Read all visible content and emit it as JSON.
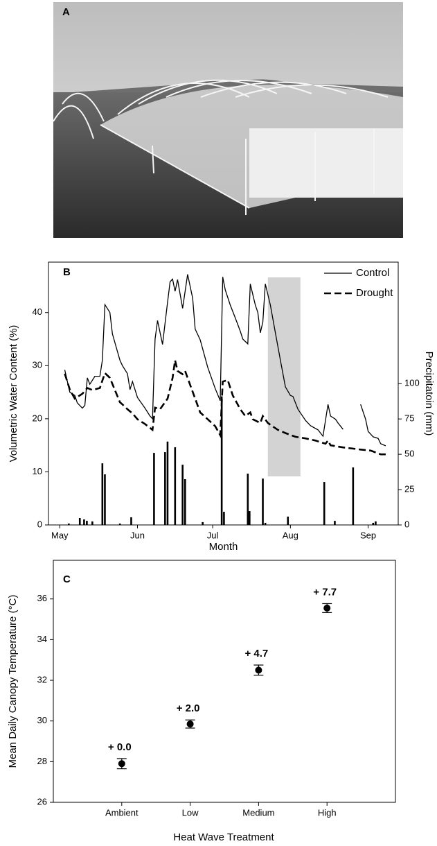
{
  "panel_a": {
    "label": "A"
  },
  "chart_data": [
    {
      "type": "line",
      "panel_label": "B",
      "x_label": "Month",
      "y_label": "Volumetric Water Content  (%)",
      "y2_label": "Precipitatoin (mm)",
      "xlim": [
        -4.5,
        135
      ],
      "xticks": [
        {
          "value": 0,
          "label": "May"
        },
        {
          "value": 31,
          "label": "Jun"
        },
        {
          "value": 61,
          "label": "Jul"
        },
        {
          "value": 92,
          "label": "Aug"
        },
        {
          "value": 123,
          "label": "Sep"
        }
      ],
      "ylim": [
        0,
        49.5
      ],
      "yticks": [
        0,
        10,
        20,
        30,
        40
      ],
      "y2lim": [
        0,
        186
      ],
      "y2ticks": [
        0,
        25,
        50,
        75,
        100
      ],
      "legend": "upper right",
      "grid": false,
      "shaded_range": [
        83,
        96
      ],
      "shade_color": "#d3d3d3",
      "series": [
        {
          "name": "Control",
          "type": "line",
          "color": "#000000",
          "dash": "solid",
          "x": [
            2,
            4,
            6,
            7,
            9,
            10,
            11,
            12,
            14,
            16,
            17,
            18,
            20,
            21,
            24,
            25,
            27,
            28,
            29,
            31,
            34,
            36,
            37,
            38,
            39,
            41,
            43,
            44,
            45,
            46,
            47,
            49,
            51,
            53,
            54,
            56,
            59,
            62,
            64,
            65,
            66,
            68,
            70,
            72,
            73,
            75,
            76,
            77,
            78,
            79,
            80,
            81,
            82,
            84,
            86,
            88,
            90,
            92,
            93,
            95,
            98,
            100,
            103,
            105,
            107,
            108,
            110,
            111,
            113,
            114,
            120,
            122,
            123,
            125,
            127,
            128,
            130
          ],
          "values": [
            29.2,
            25,
            24.4,
            23,
            22,
            22.5,
            27.7,
            26.5,
            28,
            28,
            31,
            41.5,
            40,
            36,
            31,
            30,
            28.5,
            25.5,
            27,
            24,
            22,
            20.5,
            20,
            35,
            38.5,
            34,
            42,
            45.8,
            46.3,
            44,
            46.2,
            40.8,
            47.2,
            42.7,
            36.9,
            34.9,
            29.7,
            25.7,
            23.4,
            46.7,
            44.3,
            41.4,
            39,
            36.5,
            35,
            34.1,
            45.4,
            43.4,
            41.4,
            40,
            36.2,
            38.2,
            45.4,
            41.4,
            36.2,
            31,
            26,
            24.4,
            24.2,
            21.8,
            19.7,
            18.7,
            17.9,
            16.7,
            22.7,
            20.5,
            19.9,
            19.2,
            18,
            null,
            22.7,
            19.9,
            17.6,
            16.6,
            16.3,
            15.3,
            14.9
          ]
        },
        {
          "name": "Drought",
          "type": "line",
          "color": "#000000",
          "dash": "dashed",
          "x": [
            2,
            4,
            6,
            9,
            11,
            13,
            16,
            18,
            20,
            22,
            24,
            25,
            27,
            29,
            31,
            34,
            37,
            38,
            40,
            43,
            45,
            46,
            47,
            49,
            50,
            52,
            54,
            56,
            59,
            62,
            64,
            65,
            67,
            69,
            72,
            74,
            76,
            77,
            80,
            81,
            83,
            87,
            90,
            94,
            98,
            102,
            106,
            107,
            108,
            113,
            120,
            124,
            128,
            130
          ],
          "values": [
            28.5,
            25.5,
            23.8,
            24.7,
            25.8,
            25.4,
            25.8,
            28.6,
            27.7,
            25.4,
            23.1,
            22.7,
            21.8,
            21,
            19.9,
            19,
            17.9,
            22.1,
            21.8,
            23.8,
            27.7,
            31,
            29,
            28.4,
            29,
            26.4,
            23.8,
            21.2,
            19.9,
            18.6,
            16.9,
            27,
            27.3,
            24.4,
            21.8,
            20.5,
            21.2,
            19.9,
            19.2,
            20.5,
            19.2,
            17.9,
            17.3,
            16.6,
            16.3,
            15.9,
            15.3,
            15.9,
            15,
            14.6,
            14.2,
            14,
            13.3,
            13.3
          ]
        },
        {
          "type": "bar",
          "axis": "y2",
          "color": "#000000",
          "x": [
            3.6,
            8,
            9.7,
            10.8,
            13,
            17,
            18,
            24,
            28.5,
            37.6,
            42,
            43,
            46,
            49,
            50,
            57,
            64.6,
            65.5,
            75,
            75.7,
            81,
            82,
            91,
            105.5,
            109.7,
            117,
            125,
            126
          ],
          "values": [
            1,
            4.9,
            3.9,
            2.9,
            2.5,
            43.6,
            35.8,
            1,
            5.4,
            51,
            51.5,
            59,
            55,
            42.6,
            32.4,
            2,
            91,
            9.3,
            36.3,
            9.8,
            32.8,
            1.5,
            5.9,
            30.4,
            2.9,
            40.7,
            1.5,
            2.5
          ]
        }
      ]
    },
    {
      "type": "scatter",
      "panel_label": "C",
      "x_label": "Heat Wave Treatment",
      "y_label": "Mean Daily Canopy Temperature (°C)",
      "categories": [
        "Ambient",
        "Low",
        "Medium",
        "High"
      ],
      "values": [
        27.9,
        29.85,
        32.5,
        35.55
      ],
      "errors": [
        0.25,
        0.2,
        0.25,
        0.22
      ],
      "annotations": [
        "+ 0.0",
        "+ 2.0",
        "+ 4.7",
        "+ 7.7"
      ],
      "ylim": [
        26,
        37.9
      ],
      "yticks": [
        26,
        28,
        30,
        32,
        34,
        36
      ],
      "color": "#000000"
    }
  ]
}
